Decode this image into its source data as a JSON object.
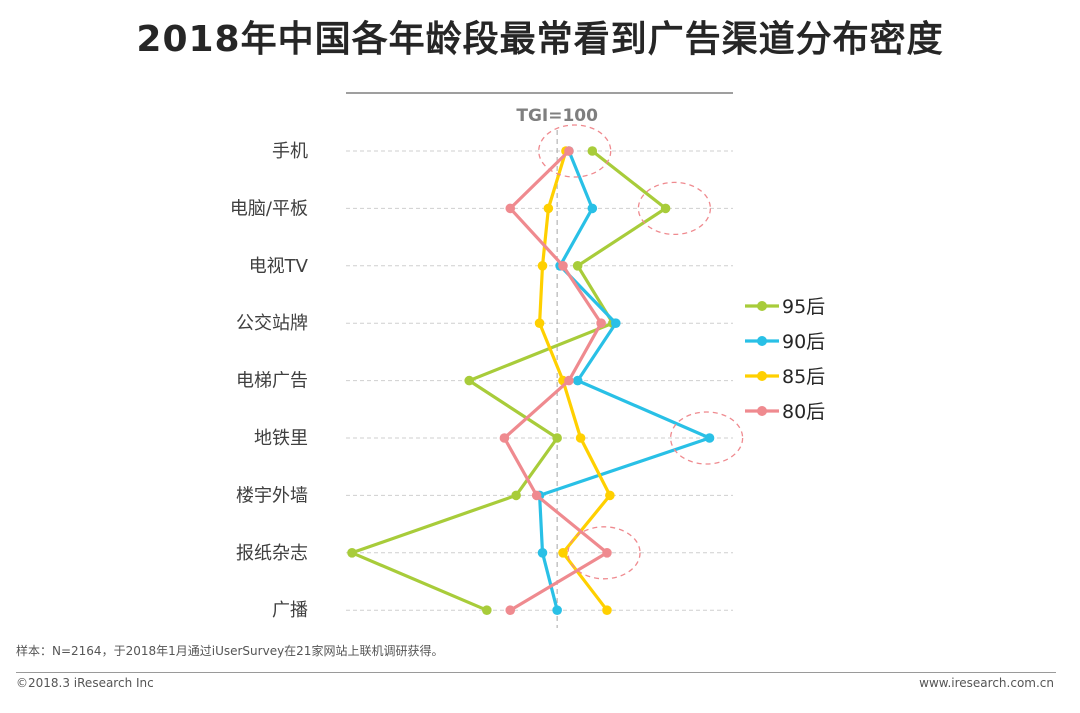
{
  "title": "2018年中国各年龄段最常看到广告渠道分布密度",
  "chart_data": {
    "type": "line",
    "orientation": "categories-vertical",
    "reference_label": "TGI=100",
    "reference_value": 100,
    "categories": [
      "手机",
      "电脑/平板",
      "电视TV",
      "公交站牌",
      "电梯广告",
      "地铁里",
      "楼宇外墙",
      "报纸杂志",
      "广播"
    ],
    "series": [
      {
        "name": "95后",
        "color": "#a8cc3a",
        "values": [
          112,
          137,
          107,
          119,
          70,
          100,
          86,
          30,
          76
        ]
      },
      {
        "name": "90后",
        "color": "#29c0e6",
        "values": [
          104,
          112,
          101,
          120,
          107,
          152,
          94,
          95,
          100
        ]
      },
      {
        "name": "85后",
        "color": "#ffd000",
        "values": [
          103,
          97,
          95,
          94,
          102,
          108,
          118,
          102,
          117
        ]
      },
      {
        "name": "80后",
        "color": "#ef8a8f",
        "values": [
          104,
          84,
          102,
          115,
          104,
          82,
          93,
          117,
          84
        ]
      }
    ],
    "highlights": [
      {
        "category": "手机",
        "value": 106
      },
      {
        "category": "电脑/平板",
        "value": 140
      },
      {
        "category": "地铁里",
        "value": 151
      },
      {
        "category": "报纸杂志",
        "value": 116
      }
    ],
    "xlim": [
      30,
      160
    ],
    "legend": "right",
    "grid": true
  },
  "note": "样本：N=2164，于2018年1月通过iUserSurvey在21家网站上联机调研获得。",
  "copyright": "©2018.3 iResearch Inc",
  "website": "www.iresearch.com.cn"
}
